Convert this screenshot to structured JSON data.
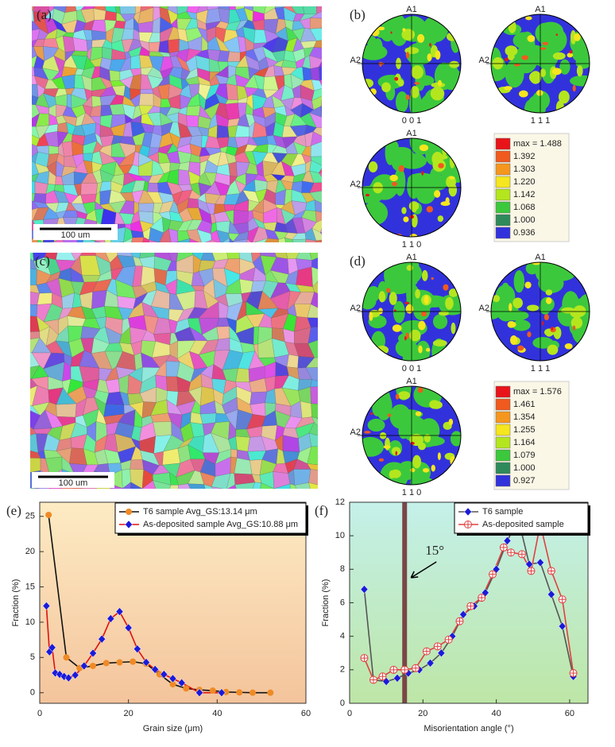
{
  "panels": {
    "labels": [
      "(a)",
      "(b)",
      "(c)",
      "(d)",
      "(e)",
      "(f)"
    ],
    "scale_bar": "100 um",
    "axes": [
      "A1",
      "A2"
    ],
    "poles": [
      "0 0 1",
      "1 1 1",
      "1 1 0"
    ],
    "legends": [
      [
        "max = 1.488",
        "1.392",
        "1.303",
        "1.220",
        "1.142",
        "1.068",
        "1.000",
        "0.936"
      ],
      [
        "max = 1.576",
        "1.461",
        "1.354",
        "1.255",
        "1.164",
        "1.079",
        "1.000",
        "0.927"
      ]
    ],
    "legend_colors": [
      "#e8141a",
      "#f05a1e",
      "#f5961e",
      "#f5e61e",
      "#b4e61e",
      "#3cc83c",
      "#2e8a5a",
      "#3232dc"
    ]
  },
  "chart_data": [
    {
      "type": "line",
      "xlabel": "Grain size (μm)",
      "ylabel": "Fraction (%)",
      "xlim": [
        0,
        60
      ],
      "ylim": [
        -1.5,
        27
      ],
      "xticks": [
        0,
        20,
        40,
        60
      ],
      "yticks": [
        0,
        5,
        10,
        15,
        20,
        25
      ],
      "legend": "upper right",
      "series": [
        {
          "name": "T6 sample Avg_GS:13.14 μm",
          "color": "#111111",
          "marker": "circle",
          "marker_color": "#f08a24",
          "x": [
            2,
            6,
            9,
            12,
            15,
            18,
            21,
            24,
            27,
            30,
            33,
            36,
            39,
            42,
            45,
            48,
            52
          ],
          "values": [
            25.2,
            5,
            3.5,
            3.8,
            4.2,
            4.3,
            4.4,
            4.1,
            2.6,
            1.2,
            0.6,
            0.4,
            0.3,
            0.1,
            0.05,
            0,
            0
          ]
        },
        {
          "name": "As-deposited sample Avg_GS:10.88 μm",
          "color": "#e01010",
          "marker": "diamond",
          "marker_color": "#1a1adb",
          "x": [
            1.5,
            2.2,
            2.8,
            3.5,
            4.5,
            5.5,
            6.5,
            8,
            10,
            12,
            14,
            16,
            18,
            20,
            22,
            24,
            26,
            28,
            30,
            32,
            36,
            41
          ],
          "values": [
            12.3,
            5.8,
            6.4,
            2.8,
            2.6,
            2.3,
            2.1,
            2.5,
            3.8,
            5.6,
            7.6,
            10.5,
            11.5,
            9.2,
            6.2,
            4.3,
            3.3,
            2.6,
            2.0,
            1.4,
            0.0,
            0.0
          ]
        }
      ]
    },
    {
      "type": "line",
      "xlabel": "Misorientation angle (°)",
      "ylabel": "Fraction (%)",
      "xlim": [
        0,
        65
      ],
      "ylim": [
        0,
        12
      ],
      "xticks": [
        0,
        20,
        40,
        60
      ],
      "yticks": [
        0,
        2,
        4,
        6,
        8,
        10,
        12
      ],
      "legend": "upper right",
      "annotations": [
        {
          "text": "15°",
          "x": 15
        }
      ],
      "series": [
        {
          "name": "T6 sample",
          "color": "#555555",
          "marker": "diamond",
          "marker_color": "#1a1adb",
          "x": [
            4,
            6.5,
            10,
            13,
            16,
            19,
            22,
            25,
            28,
            31,
            34,
            37,
            40,
            43,
            46,
            49,
            52,
            55,
            58,
            61
          ],
          "values": [
            6.8,
            1.4,
            1.3,
            1.5,
            1.8,
            2.0,
            2.4,
            3.0,
            4.0,
            5.3,
            5.8,
            6.6,
            8.0,
            9.7,
            11.0,
            8.3,
            8.4,
            6.5,
            4.6,
            1.6
          ]
        },
        {
          "name": "As-deposited  sample",
          "color": "#e04040",
          "marker": "circle-plus",
          "marker_color": "#e04040",
          "x": [
            4,
            6.5,
            9,
            12,
            15,
            18,
            21,
            24,
            27,
            30,
            33,
            36,
            39,
            42,
            44,
            47,
            49.5,
            52,
            55,
            58,
            61
          ],
          "values": [
            2.7,
            1.4,
            1.6,
            2.0,
            2.0,
            2.1,
            3.1,
            3.4,
            3.8,
            4.9,
            5.8,
            6.3,
            7.7,
            9.3,
            9.0,
            8.9,
            7.9,
            10.7,
            7.9,
            6.2,
            1.8
          ]
        }
      ]
    }
  ]
}
